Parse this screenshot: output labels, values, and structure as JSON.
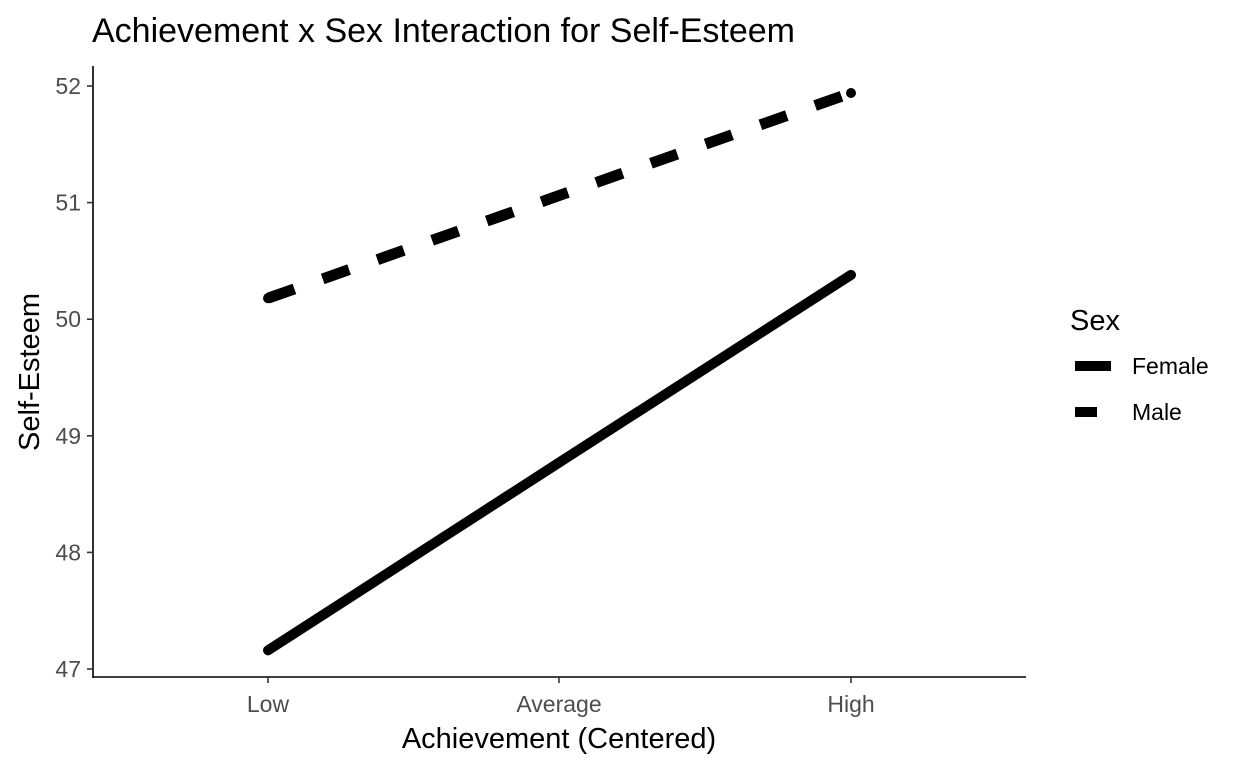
{
  "chart_data": {
    "type": "line",
    "title": "Achievement x Sex Interaction for Self-Esteem",
    "xlabel": "Achievement (Centered)",
    "ylabel": "Self-Esteem",
    "categories": [
      "Low",
      "Average",
      "High"
    ],
    "y_ticks": [
      "47",
      "48",
      "49",
      "50",
      "51",
      "52"
    ],
    "ylim": [
      46.95,
      52.17
    ],
    "grid": false,
    "legend": {
      "title": "Sex",
      "placement": "right"
    },
    "series": [
      {
        "name": "Female",
        "line_style": "solid",
        "color": "#000000",
        "values": [
          47.16,
          48.77,
          50.38
        ]
      },
      {
        "name": "Male",
        "line_style": "dashed",
        "color": "#000000",
        "values": [
          50.18,
          51.06,
          51.94
        ]
      }
    ]
  }
}
